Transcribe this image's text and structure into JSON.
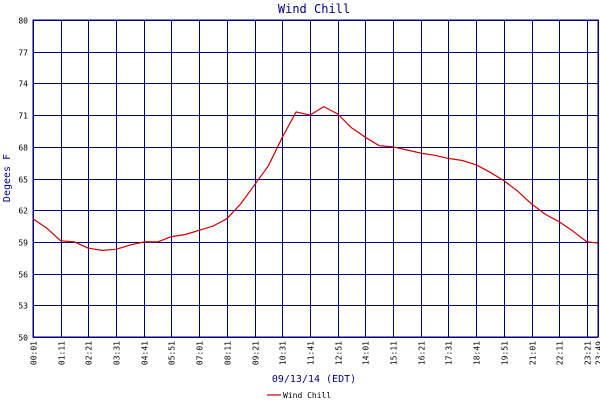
{
  "chart_data": {
    "type": "line",
    "title": "Wind Chill",
    "xlabel": "09/13/14 (EDT)",
    "ylabel": "Degees F",
    "ylim": [
      50,
      80
    ],
    "y_ticks": [
      50,
      53,
      56,
      59,
      62,
      65,
      68,
      71,
      74,
      77,
      80
    ],
    "x_ticks": [
      "00:01",
      "01:11",
      "02:21",
      "03:31",
      "04:41",
      "05:51",
      "07:01",
      "08:11",
      "09:21",
      "10:31",
      "11:41",
      "12:51",
      "14:01",
      "15:11",
      "16:21",
      "17:31",
      "18:41",
      "19:51",
      "21:01",
      "22:11",
      "23:21",
      "23:49"
    ],
    "grid": true,
    "legend_position": "bottom-left",
    "series": [
      {
        "name": "Wind Chill",
        "color": "#cc0000",
        "x": [
          "00:01",
          "00:36",
          "01:11",
          "01:46",
          "02:21",
          "02:56",
          "03:31",
          "04:06",
          "04:41",
          "05:16",
          "05:51",
          "06:26",
          "07:01",
          "07:36",
          "08:11",
          "08:46",
          "09:21",
          "09:56",
          "10:31",
          "11:06",
          "11:41",
          "12:16",
          "12:51",
          "13:26",
          "14:01",
          "14:36",
          "15:11",
          "15:46",
          "16:21",
          "16:56",
          "17:31",
          "18:06",
          "18:41",
          "19:16",
          "19:51",
          "20:26",
          "21:01",
          "21:36",
          "22:11",
          "22:46",
          "23:21",
          "23:49"
        ],
        "values": [
          61.2,
          60.3,
          59.1,
          59.0,
          58.4,
          58.2,
          58.3,
          58.7,
          59.0,
          59.0,
          59.5,
          59.7,
          60.1,
          60.5,
          61.2,
          62.6,
          64.4,
          66.2,
          68.9,
          71.3,
          71.0,
          71.8,
          71.1,
          69.8,
          68.9,
          68.1,
          68.0,
          67.7,
          67.4,
          67.2,
          66.9,
          66.7,
          66.3,
          65.6,
          64.8,
          63.8,
          62.6,
          61.6,
          60.9,
          60.0,
          59.0,
          58.9
        ]
      }
    ]
  }
}
